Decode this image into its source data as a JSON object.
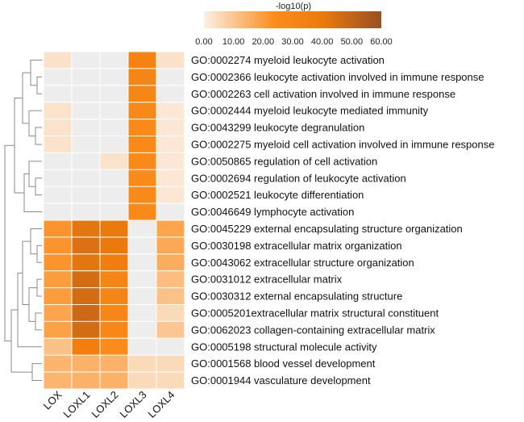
{
  "chart_data": {
    "type": "heatmap",
    "title": "",
    "colorbar": {
      "title": "-log10(p)",
      "range": [
        0,
        60
      ],
      "ticks": [
        "0.00",
        "10.00",
        "20.00",
        "30.00",
        "40.00",
        "50.00",
        "60.00"
      ],
      "colors": [
        "#fbefe4",
        "#fb8c1c",
        "#ef7c0c",
        "#9a4f24"
      ]
    },
    "columns": [
      "LOX",
      "LOXL1",
      "LOXL2",
      "LOXL3",
      "LOXL4"
    ],
    "rows": [
      "GO:0002274 myeloid leukocyte activation",
      "GO:0002366 leukocyte activation involved in immune response",
      "GO:0002263 cell activation involved in immune response",
      "GO:0002444 myeloid leukocyte mediated immunity",
      "GO:0043299 leukocyte degranulation",
      "GO:0002275 myeloid cell activation involved in immune response",
      "GO:0050865 regulation of cell activation",
      "GO:0002694 regulation of leukocyte activation",
      "GO:0002521 leukocyte differentiation",
      "GO:0046649 lymphocyte activation",
      "GO:0045229 external encapsulating structure organization",
      "GO:0030198 extracellular matrix organization",
      "GO:0043062 extracellular structure organization",
      "GO:0031012 extracellular matrix",
      "GO:0030312 external encapsulating structure",
      "GO:0005201extracellular matrix structural constituent",
      "GO:0062023 collagen-containing extracellular matrix",
      "GO:0005198 structural molecule activity",
      "GO:0001568 blood vessel development",
      "GO:0001944 vasculature development"
    ],
    "values": [
      [
        3,
        0,
        0,
        32,
        3
      ],
      [
        0,
        0,
        0,
        31,
        0
      ],
      [
        0,
        0,
        0,
        30,
        0
      ],
      [
        3,
        0,
        0,
        28,
        2
      ],
      [
        3,
        0,
        0,
        27,
        2
      ],
      [
        3,
        0,
        0,
        27,
        2
      ],
      [
        0,
        0,
        3,
        27,
        2
      ],
      [
        0,
        0,
        0,
        27,
        2
      ],
      [
        0,
        0,
        0,
        27,
        2
      ],
      [
        0,
        0,
        0,
        27,
        0
      ],
      [
        22,
        42,
        40,
        0,
        18
      ],
      [
        22,
        44,
        40,
        0,
        17
      ],
      [
        22,
        42,
        38,
        0,
        16
      ],
      [
        20,
        46,
        31,
        0,
        12
      ],
      [
        20,
        46,
        31,
        0,
        11
      ],
      [
        18,
        48,
        30,
        0,
        5
      ],
      [
        19,
        46,
        29,
        0,
        10
      ],
      [
        11,
        37,
        24,
        0,
        0
      ],
      [
        14,
        15,
        15,
        5,
        5
      ],
      [
        14,
        15,
        15,
        5,
        5
      ]
    ],
    "empty_color": "#ededed",
    "dendrogram": "hierarchical clustering of rows (left side)"
  }
}
